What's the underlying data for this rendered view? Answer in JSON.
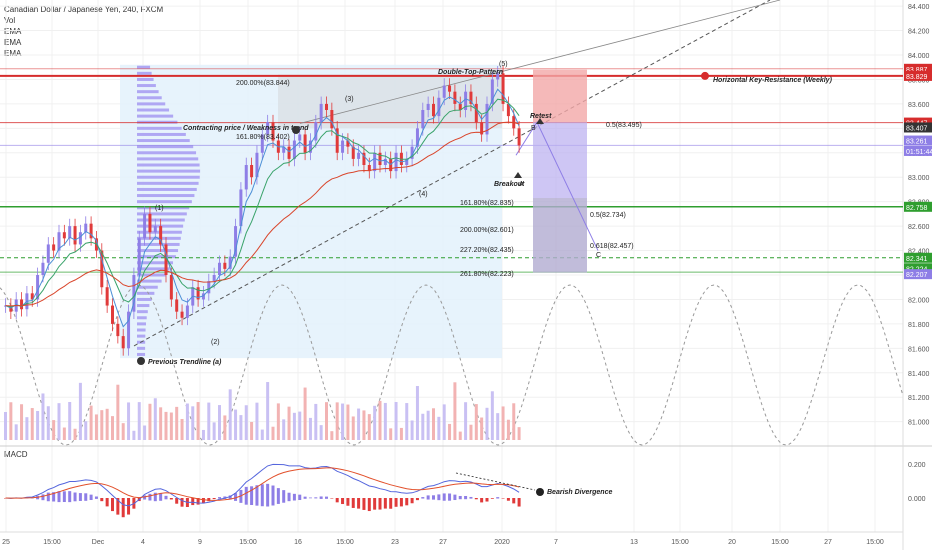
{
  "legend": {
    "symbol": "Canadian Dollar / Japanese Yen, 240, FXCM",
    "indicators": [
      "Vol",
      "EMA",
      "EMA",
      "EMA"
    ]
  },
  "macd": {
    "label": "MACD",
    "ticks": [
      "0.200",
      "0.000"
    ]
  },
  "colors": {
    "up": "#8e7ee6",
    "down": "#e03a3a",
    "resistance": "#d62c2c",
    "support_green": "#2f9e2f",
    "target_box": "#b9aef0",
    "stop_box": "#f3a8a8",
    "profile": "#9c8ef0"
  },
  "chart_data": {
    "type": "candlestick",
    "title": "Canadian Dollar / Japanese Yen, 240, FXCM",
    "ylim": [
      80.85,
      84.45
    ],
    "price_ticks": [
      "84.400",
      "84.200",
      "84.000",
      "83.800",
      "83.600",
      "83.400",
      "83.200",
      "83.000",
      "82.800",
      "82.600",
      "82.400",
      "82.200",
      "82.000",
      "81.800",
      "81.600",
      "81.400",
      "81.200",
      "81.000"
    ],
    "time_ticks": [
      "25",
      "15:00",
      "Dec",
      "4",
      "9",
      "15:00",
      "16",
      "15:00",
      "23",
      "27",
      "2020",
      "7",
      "13",
      "15:00",
      "20",
      "15:00",
      "27",
      "15:00"
    ],
    "price_badges": [
      {
        "label": "83.887",
        "color": "#d62c2c"
      },
      {
        "label": "83.829",
        "color": "#d62c2c"
      },
      {
        "label": "83.447",
        "color": "#d62c2c"
      },
      {
        "label": "83.407",
        "color": "#333333"
      },
      {
        "label": "83.261",
        "color": "#8e7ee6"
      },
      {
        "label": "01:51:44",
        "color": "#8e7ee6"
      },
      {
        "label": "82.758",
        "color": "#2f9e2f"
      },
      {
        "label": "82.341",
        "color": "#2f9e2f"
      },
      {
        "label": "82.224",
        "color": "#2f9e2f"
      },
      {
        "label": "82.207",
        "color": "#8e7ee6"
      }
    ],
    "annotations": [
      "Double-Top-Pattern",
      "(5)",
      "Horizontal Key-Resistance (Weekly)",
      "Retest",
      "0.5(83.495)",
      "Contracting price / Weakness in trend",
      "161.80%(83.402)",
      "200.00%(83.844)",
      "(3)",
      "(4)",
      "(1)",
      "(2)",
      "Breakout",
      "A",
      "B",
      "C",
      "161.80%(82.835)",
      "200.00%(82.601)",
      "227.20%(82.435)",
      "261.80%(82.223)",
      "0.5(82.734)",
      "0.618(82.457)",
      "Previous Trendline (a)",
      "Bearish Divergence"
    ],
    "price_path": [
      81.95,
      81.9,
      82.0,
      81.92,
      82.05,
      82.0,
      82.2,
      82.3,
      82.45,
      82.4,
      82.55,
      82.5,
      82.6,
      82.45,
      82.55,
      82.62,
      82.5,
      82.4,
      82.1,
      81.95,
      81.8,
      81.7,
      81.6,
      81.9,
      82.2,
      82.5,
      82.7,
      82.55,
      82.6,
      82.45,
      82.2,
      82.0,
      81.9,
      81.85,
      81.95,
      82.1,
      82.0,
      82.05,
      82.15,
      82.2,
      82.3,
      82.25,
      82.35,
      82.6,
      82.9,
      83.1,
      83.0,
      83.2,
      83.35,
      83.45,
      83.3,
      83.2,
      83.25,
      83.15,
      83.3,
      83.35,
      83.2,
      83.3,
      83.45,
      83.6,
      83.55,
      83.4,
      83.2,
      83.3,
      83.25,
      83.15,
      83.2,
      83.1,
      83.05,
      83.2,
      83.1,
      83.15,
      83.05,
      83.2,
      83.1,
      83.15,
      83.25,
      83.4,
      83.55,
      83.6,
      83.5,
      83.65,
      83.75,
      83.7,
      83.6,
      83.55,
      83.7,
      83.6,
      83.45,
      83.35,
      83.6,
      83.8,
      83.85,
      83.6,
      83.5,
      83.4,
      83.26
    ]
  },
  "labels": {
    "previous_trendline": "Previous Trendline (a)",
    "bearish_divergence": "Bearish Divergence",
    "resistance": "Horizontal Key-Resistance (Weekly)"
  }
}
